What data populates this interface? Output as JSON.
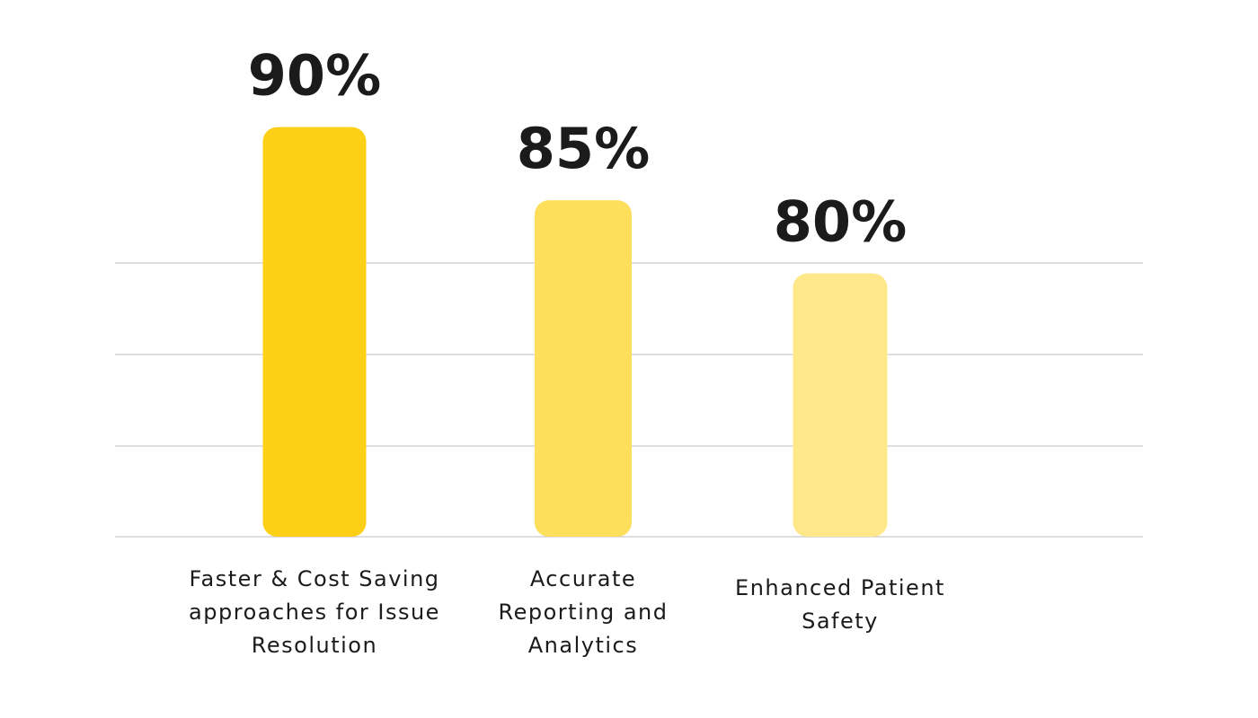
{
  "chart_data": {
    "type": "bar",
    "categories": [
      "Faster & Cost Saving approaches for Issue Resolution",
      "Accurate Reporting and Analytics",
      "Enhanced Patient Safety"
    ],
    "category_label_lines": [
      [
        "Faster & Cost Saving",
        "approaches for Issue",
        "Resolution"
      ],
      [
        "Accurate",
        "Reporting and",
        "Analytics"
      ],
      [
        "Enhanced Patient",
        "Safety"
      ]
    ],
    "values": [
      90,
      85,
      80
    ],
    "data_labels": [
      "90%",
      "85%",
      "80%"
    ],
    "colors": [
      "#fdd017",
      "#fddf5c",
      "#fee88a"
    ],
    "title": "",
    "xlabel": "",
    "ylabel": "",
    "grid": true,
    "legend": "none"
  }
}
